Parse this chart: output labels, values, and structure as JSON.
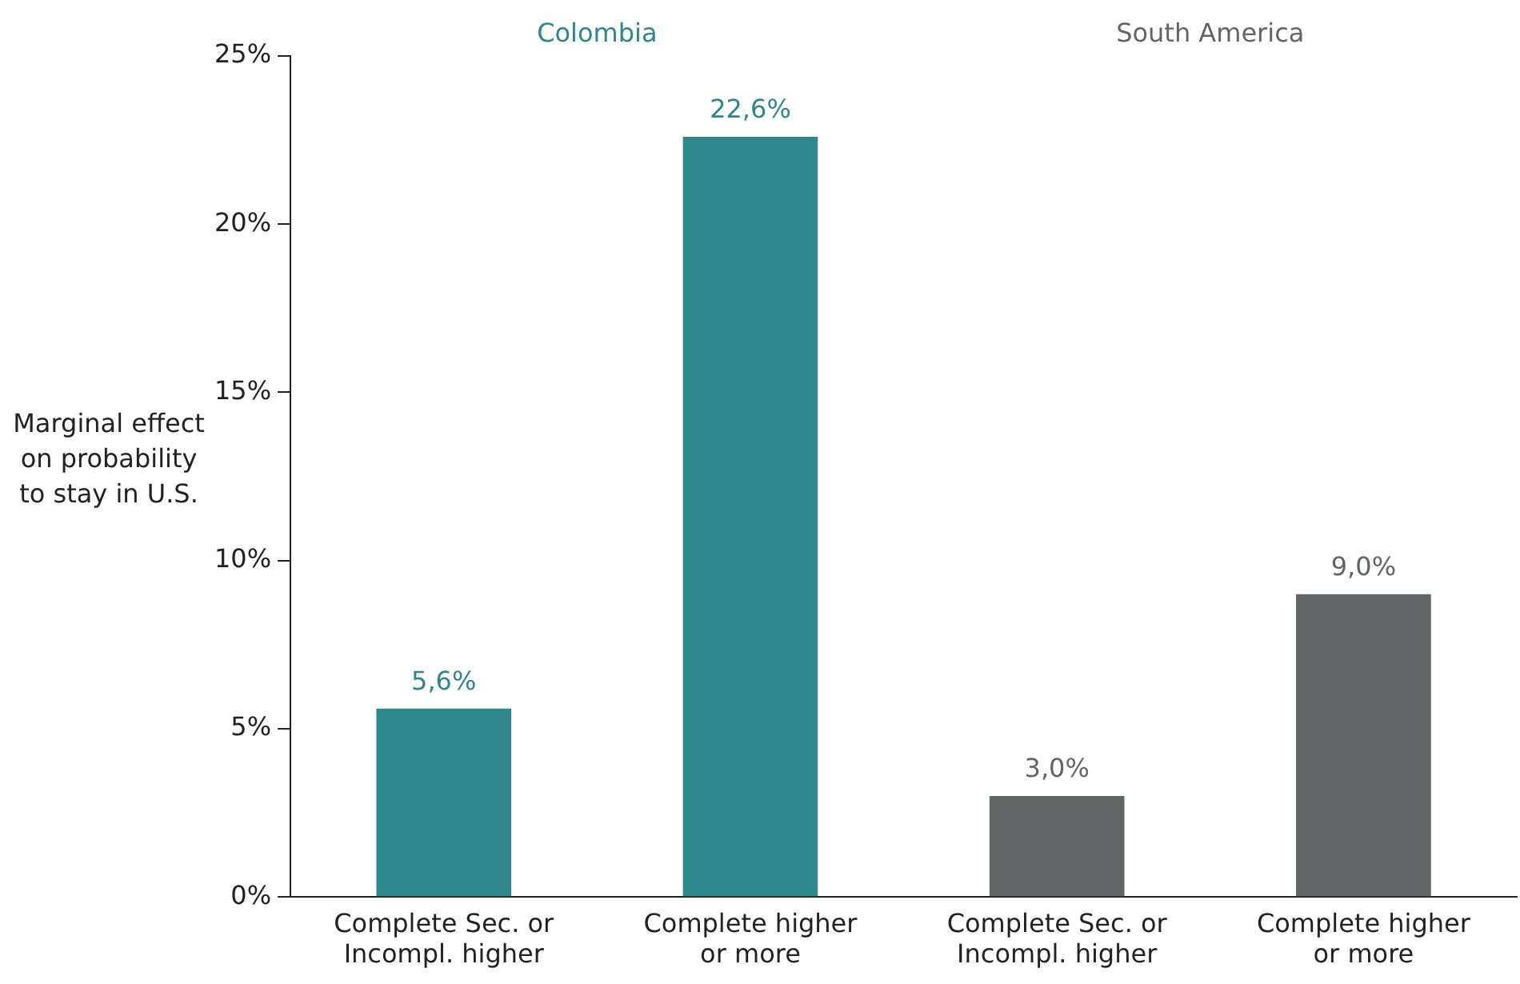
{
  "chart_data": {
    "type": "bar",
    "ylabel": "Marginal effect on probability to stay in U.S.",
    "categories": [
      "Complete Sec. or Incompl. higher",
      "Complete higher or more",
      "Complete Sec. or Incompl. higher",
      "Complete higher or more"
    ],
    "series": [
      {
        "name": "Colombia",
        "color": "#2e878c",
        "values": [
          5.6,
          22.6,
          null,
          null
        ],
        "value_labels": [
          "5,6%",
          "22,6%",
          null,
          null
        ]
      },
      {
        "name": "South America",
        "color": "#636466",
        "values": [
          null,
          null,
          3.0,
          9.0
        ],
        "value_labels": [
          null,
          null,
          "3,0%",
          "9,0%"
        ]
      }
    ],
    "ylim": [
      0,
      25
    ],
    "yticks": [
      {
        "value": 0,
        "label": "0%"
      },
      {
        "value": 5,
        "label": "5%"
      },
      {
        "value": 10,
        "label": "10%"
      },
      {
        "value": 15,
        "label": "15%"
      },
      {
        "value": 20,
        "label": "20%"
      },
      {
        "value": 25,
        "label": "25%"
      }
    ],
    "grid": false,
    "legend": false
  }
}
